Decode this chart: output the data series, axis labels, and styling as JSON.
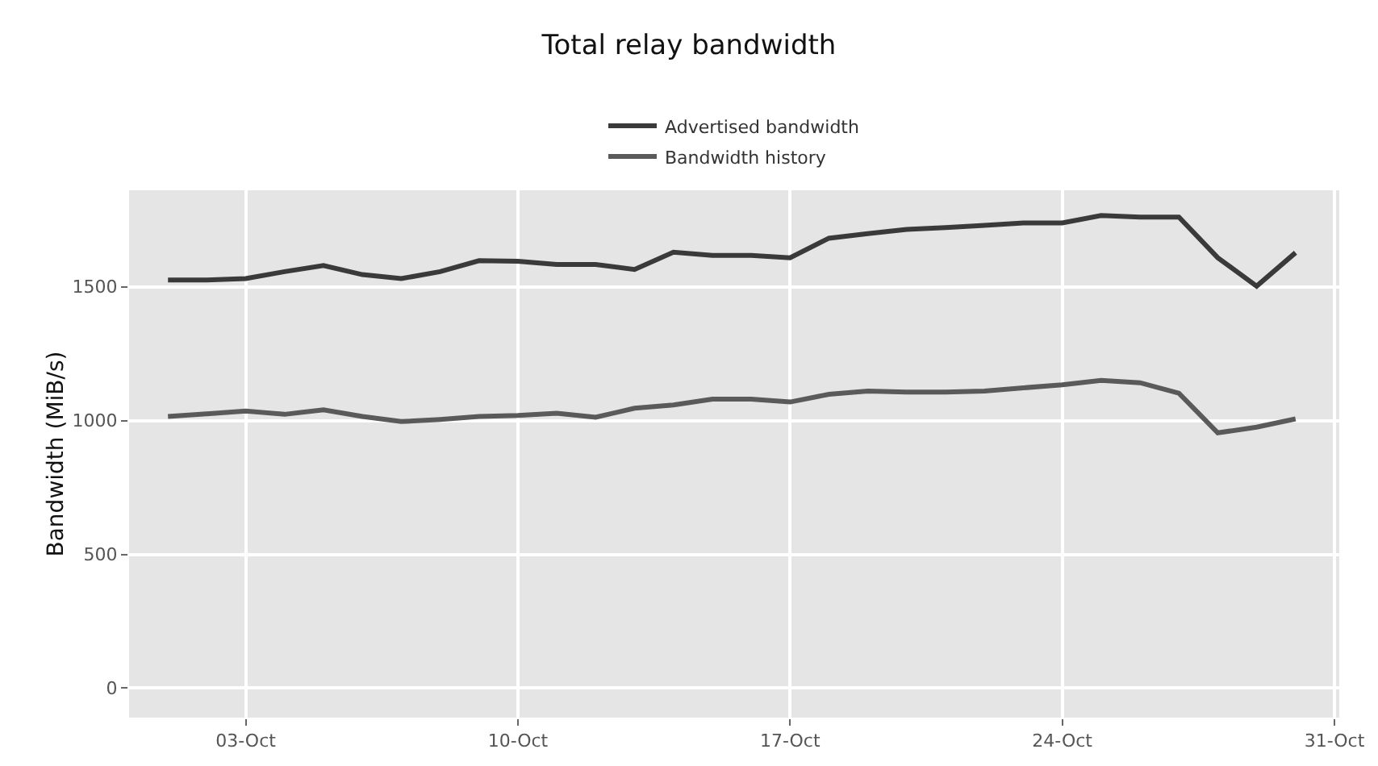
{
  "chart_data": {
    "type": "line",
    "title": "Total relay bandwidth",
    "ylabel": "Bandwidth (MiB/s)",
    "x": [
      "--10-01",
      "--10-02",
      "--10-03",
      "--10-04",
      "--10-05",
      "--10-06",
      "--10-07",
      "--10-08",
      "--10-09",
      "--10-10",
      "--10-11",
      "--10-12",
      "--10-13",
      "--10-14",
      "--10-15",
      "--10-16",
      "--10-17",
      "--10-18",
      "--10-19",
      "--10-20",
      "--10-21",
      "--10-22",
      "--10-23",
      "--10-24",
      "--10-25",
      "--10-26",
      "--10-27",
      "--10-28",
      "--10-29",
      "--10-30"
    ],
    "series": [
      {
        "name": "Advertised bandwidth",
        "color": "#3a3a3a",
        "values": [
          1525,
          1525,
          1530,
          1556,
          1579,
          1545,
          1530,
          1556,
          1597,
          1595,
          1583,
          1583,
          1564,
          1629,
          1617,
          1617,
          1608,
          1681,
          1698,
          1714,
          1721,
          1729,
          1738,
          1738,
          1766,
          1760,
          1760,
          1608,
          1502,
          1627
        ]
      },
      {
        "name": "Bandwidth history",
        "color": "#5a5a5a",
        "values": [
          1015,
          1025,
          1035,
          1023,
          1040,
          1015,
          996,
          1004,
          1015,
          1019,
          1027,
          1012,
          1046,
          1058,
          1080,
          1080,
          1069,
          1098,
          1110,
          1106,
          1106,
          1110,
          1122,
          1133,
          1150,
          1141,
          1102,
          954,
          975,
          1006
        ]
      }
    ],
    "xlim": [
      "--09-30",
      "--10-31T03:00"
    ],
    "xticks": [
      {
        "value": "--10-03",
        "label": "03-Oct"
      },
      {
        "value": "--10-10",
        "label": "10-Oct"
      },
      {
        "value": "--10-17",
        "label": "17-Oct"
      },
      {
        "value": "--10-24",
        "label": "24-Oct"
      },
      {
        "value": "--10-31",
        "label": "31-Oct"
      }
    ],
    "ylim": [
      -110,
      1860
    ],
    "yticks": [
      0,
      500,
      1000,
      1500
    ],
    "grid": true,
    "legend": "top",
    "marker": "none",
    "line_style": "solid"
  }
}
